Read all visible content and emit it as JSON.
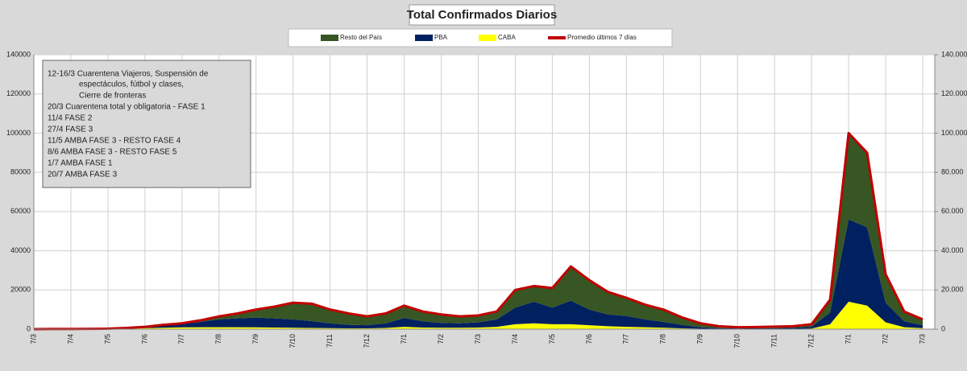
{
  "chart_data": {
    "type": "stacked_area_line",
    "title": "Total Confirmados Diarios",
    "categories": [
      "7/3",
      null,
      "7/4",
      null,
      "7/5",
      null,
      "7/6",
      null,
      "7/7",
      null,
      "7/8",
      null,
      "7/9",
      null,
      "7/10",
      null,
      "7/11",
      null,
      "7/12",
      null,
      "7/1",
      null,
      "7/2",
      null,
      "7/3",
      null,
      "7/4",
      null,
      "7/5",
      null,
      "7/6",
      null,
      "7/7",
      null,
      "7/8",
      null,
      "7/9",
      null,
      "7/10",
      null,
      "7/11",
      null,
      "7/12",
      null,
      "7/1",
      null,
      "7/2",
      null,
      "7/3"
    ],
    "series": [
      {
        "name": "CABA",
        "color": "#ffff00",
        "values": [
          0,
          40,
          40,
          60,
          120,
          300,
          500,
          700,
          900,
          1000,
          1000,
          1000,
          900,
          800,
          700,
          600,
          500,
          400,
          400,
          600,
          1200,
          800,
          700,
          700,
          800,
          1200,
          2500,
          3000,
          2500,
          2500,
          2000,
          1500,
          1200,
          1000,
          700,
          400,
          200,
          100,
          80,
          100,
          120,
          150,
          300,
          2500,
          14000,
          12000,
          3500,
          1000,
          500
        ]
      },
      {
        "name": "PBA",
        "color": "#002060",
        "values": [
          0,
          30,
          30,
          60,
          100,
          250,
          550,
          1200,
          1700,
          2700,
          4000,
          4500,
          5000,
          4700,
          4300,
          3500,
          2500,
          1800,
          1600,
          2400,
          4500,
          3200,
          2500,
          2300,
          2700,
          3800,
          8500,
          11000,
          8500,
          12000,
          8000,
          6000,
          5500,
          4000,
          3000,
          1800,
          800,
          400,
          300,
          350,
          400,
          500,
          900,
          6000,
          42000,
          40000,
          10000,
          3000,
          1500
        ]
      },
      {
        "name": "Resto del País",
        "color": "#375623",
        "values": [
          0,
          30,
          30,
          30,
          30,
          50,
          150,
          300,
          400,
          800,
          1500,
          2500,
          4100,
          6000,
          8500,
          8900,
          7000,
          5800,
          4500,
          5000,
          6300,
          5000,
          4300,
          3500,
          3500,
          4000,
          9000,
          8000,
          10000,
          17500,
          15000,
          11500,
          9300,
          7500,
          6300,
          3800,
          2000,
          1000,
          620,
          650,
          780,
          850,
          1300,
          6500,
          44000,
          38000,
          14500,
          5000,
          3000
        ]
      },
      {
        "name": "Promedio últimos 7 días",
        "color": "#c00000",
        "line": true,
        "values": [
          0,
          100,
          100,
          150,
          250,
          600,
          1200,
          2200,
          3000,
          4500,
          6500,
          8000,
          10000,
          11500,
          13500,
          13000,
          10000,
          8000,
          6500,
          8000,
          12000,
          9000,
          7500,
          6500,
          7000,
          9000,
          20000,
          22000,
          21000,
          32000,
          25000,
          19000,
          16000,
          12500,
          10000,
          6000,
          3000,
          1500,
          1000,
          1100,
          1300,
          1500,
          2500,
          15000,
          100000,
          90000,
          28000,
          9000,
          5000
        ]
      }
    ],
    "legend_order": [
      2,
      1,
      0,
      3
    ],
    "ylim": [
      0,
      140000
    ],
    "yticks": [
      0,
      20000,
      40000,
      60000,
      80000,
      100000,
      120000,
      140000
    ],
    "y2lim": [
      0,
      140000
    ],
    "y2ticks": [
      {
        "value": 0,
        "label": "0"
      },
      {
        "value": 20000,
        "label": "20.000"
      },
      {
        "value": 40000,
        "label": "40.000"
      },
      {
        "value": 60000,
        "label": "60.000"
      },
      {
        "value": 80000,
        "label": "80.000"
      },
      {
        "value": 100000,
        "label": "100.000"
      },
      {
        "value": 120000,
        "label": "120.000"
      },
      {
        "value": 140000,
        "label": "140.000"
      }
    ],
    "grid": true,
    "annotation_lines": [
      "12-16/3  Cuarentena Viajeros, Suspensión de",
      "espectáculos, fútbol y clases,",
      "Cierre de fronteras",
      "20/3 Cuarentena total y obligatoria - FASE 1",
      "11/4 FASE 2",
      "27/4 FASE 3",
      "11/5 AMBA FASE 3 - RESTO FASE 4",
      "8/6 AMBA FASE 3 - RESTO FASE 5",
      "1/7 AMBA FASE 1",
      "20/7 AMBA FASE 3"
    ]
  }
}
